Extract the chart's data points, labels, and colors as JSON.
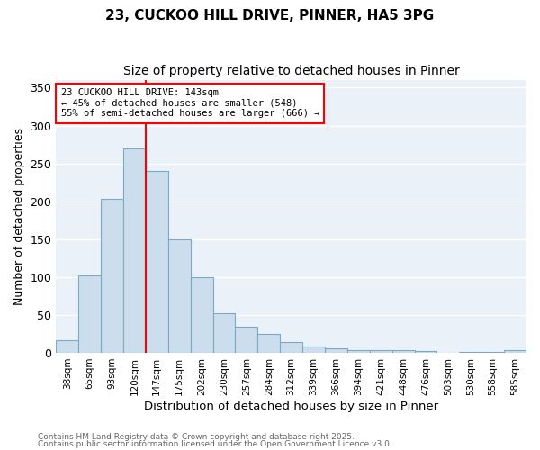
{
  "title_line1": "23, CUCKOO HILL DRIVE, PINNER, HA5 3PG",
  "title_line2": "Size of property relative to detached houses in Pinner",
  "xlabel": "Distribution of detached houses by size in Pinner",
  "ylabel": "Number of detached properties",
  "footnote1": "Contains HM Land Registry data © Crown copyright and database right 2025.",
  "footnote2": "Contains public sector information licensed under the Open Government Licence v3.0.",
  "bar_labels": [
    "38sqm",
    "65sqm",
    "93sqm",
    "120sqm",
    "147sqm",
    "175sqm",
    "202sqm",
    "230sqm",
    "257sqm",
    "284sqm",
    "312sqm",
    "339sqm",
    "366sqm",
    "394sqm",
    "421sqm",
    "448sqm",
    "476sqm",
    "503sqm",
    "530sqm",
    "558sqm",
    "585sqm"
  ],
  "bar_values": [
    17,
    102,
    203,
    270,
    240,
    150,
    100,
    52,
    34,
    25,
    14,
    8,
    6,
    4,
    4,
    4,
    2,
    0,
    1,
    1,
    3
  ],
  "bar_color": "#ccdded",
  "bar_edge_color": "#7aaac8",
  "vline_x": 3.5,
  "vline_color": "red",
  "annotation_text": "23 CUCKOO HILL DRIVE: 143sqm\n← 45% of detached houses are smaller (548)\n55% of semi-detached houses are larger (666) →",
  "annotation_box_color": "red",
  "annotation_fill": "white",
  "ylim": [
    0,
    360
  ],
  "yticks": [
    0,
    50,
    100,
    150,
    200,
    250,
    300,
    350
  ],
  "bg_color": "#ffffff",
  "plot_bg_color": "#eaf1f8",
  "grid_color": "#ffffff",
  "title_fontsize": 11,
  "subtitle_fontsize": 10,
  "footnote_color": "#666666"
}
